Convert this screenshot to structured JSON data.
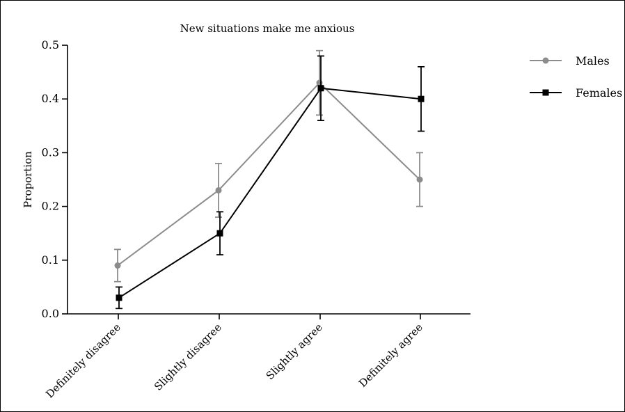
{
  "chart_data": {
    "type": "line",
    "title": "New situations make me anxious",
    "xlabel": "",
    "ylabel": "Proportion",
    "categories": [
      "Definitely disagree",
      "Slightly disagree",
      "Slightly agree",
      "Definitely agree"
    ],
    "ylim": [
      0,
      0.5
    ],
    "yticks": [
      0.0,
      0.1,
      0.2,
      0.3,
      0.4,
      0.5
    ],
    "ytick_labels": [
      "0.0",
      "0.1",
      "0.2",
      "0.3",
      "0.4",
      "0.5"
    ],
    "grid": false,
    "legend_position": "right",
    "series": [
      {
        "name": "Males",
        "color": "#8c8c8c",
        "marker": "circle",
        "values": [
          0.09,
          0.23,
          0.43,
          0.25
        ],
        "error_low": [
          0.06,
          0.18,
          0.37,
          0.2
        ],
        "error_high": [
          0.12,
          0.28,
          0.49,
          0.3
        ]
      },
      {
        "name": "Females",
        "color": "#000000",
        "marker": "square",
        "values": [
          0.03,
          0.15,
          0.42,
          0.4
        ],
        "error_low": [
          0.01,
          0.11,
          0.36,
          0.34
        ],
        "error_high": [
          0.05,
          0.19,
          0.48,
          0.46
        ]
      }
    ]
  }
}
